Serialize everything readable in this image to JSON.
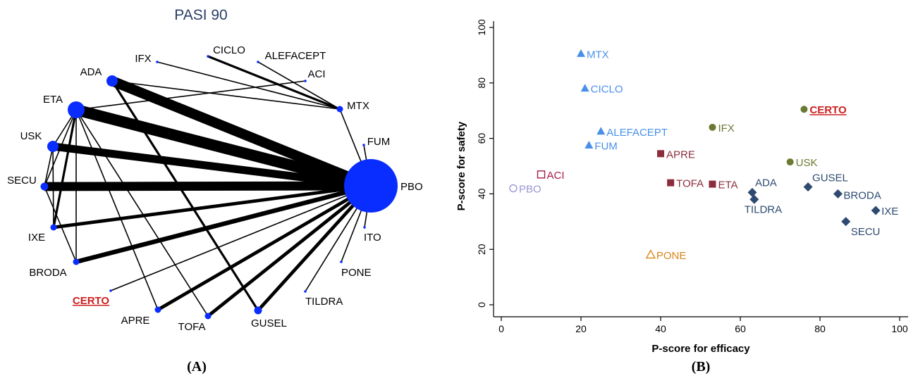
{
  "panel_a": {
    "title": "PASI 90",
    "caption": "(A)",
    "node_color": "#0a2dff",
    "highlight_color": "#cc1f1f",
    "chart_data": {
      "type": "network",
      "title": "PASI 90",
      "nodes": [
        {
          "id": "PBO",
          "label": "PBO",
          "size": 10
        },
        {
          "id": "ITO",
          "label": "ITO",
          "size": 0
        },
        {
          "id": "PONE",
          "label": "PONE",
          "size": 0
        },
        {
          "id": "TILDRA",
          "label": "TILDRA",
          "size": 0
        },
        {
          "id": "GUSEL",
          "label": "GUSEL",
          "size": 2
        },
        {
          "id": "TOFA",
          "label": "TOFA",
          "size": 1
        },
        {
          "id": "APRE",
          "label": "APRE",
          "size": 1
        },
        {
          "id": "CERTO",
          "label": "CERTO",
          "size": 0,
          "highlight": true
        },
        {
          "id": "BRODA",
          "label": "BRODA",
          "size": 1
        },
        {
          "id": "IXE",
          "label": "IXE",
          "size": 1
        },
        {
          "id": "SECU",
          "label": "SECU",
          "size": 2
        },
        {
          "id": "USK",
          "label": "USK",
          "size": 3
        },
        {
          "id": "ETA",
          "label": "ETA",
          "size": 5
        },
        {
          "id": "ADA",
          "label": "ADA",
          "size": 3
        },
        {
          "id": "IFX",
          "label": "IFX",
          "size": 0
        },
        {
          "id": "CICLO",
          "label": "CICLO",
          "size": 0
        },
        {
          "id": "ALEFACEPT",
          "label": "ALEFACEPT",
          "size": 0
        },
        {
          "id": "ACI",
          "label": "ACI",
          "size": 0
        },
        {
          "id": "MTX",
          "label": "MTX",
          "size": 1
        },
        {
          "id": "FUM",
          "label": "FUM",
          "size": 0
        }
      ],
      "edges": [
        {
          "a": "ADA",
          "b": "PBO",
          "w": 9
        },
        {
          "a": "ETA",
          "b": "PBO",
          "w": 10
        },
        {
          "a": "USK",
          "b": "PBO",
          "w": 7
        },
        {
          "a": "SECU",
          "b": "PBO",
          "w": 8
        },
        {
          "a": "IXE",
          "b": "PBO",
          "w": 3
        },
        {
          "a": "BRODA",
          "b": "PBO",
          "w": 4
        },
        {
          "a": "APRE",
          "b": "PBO",
          "w": 3
        },
        {
          "a": "TOFA",
          "b": "PBO",
          "w": 3
        },
        {
          "a": "GUSEL",
          "b": "PBO",
          "w": 3
        },
        {
          "a": "CERTO",
          "b": "PBO",
          "w": 1
        },
        {
          "a": "TILDRA",
          "b": "PBO",
          "w": 1
        },
        {
          "a": "PONE",
          "b": "PBO",
          "w": 1
        },
        {
          "a": "ITO",
          "b": "PBO",
          "w": 1
        },
        {
          "a": "FUM",
          "b": "PBO",
          "w": 1
        },
        {
          "a": "MTX",
          "b": "PBO",
          "w": 1
        },
        {
          "a": "ADA",
          "b": "GUSEL",
          "w": 2
        },
        {
          "a": "ADA",
          "b": "MTX",
          "w": 1
        },
        {
          "a": "CICLO",
          "b": "MTX",
          "w": 2
        },
        {
          "a": "ALEFACEPT",
          "b": "MTX",
          "w": 1
        },
        {
          "a": "IFX",
          "b": "MTX",
          "w": 1
        },
        {
          "a": "ETA",
          "b": "ACI",
          "w": 1
        },
        {
          "a": "ETA",
          "b": "USK",
          "w": 1
        },
        {
          "a": "ETA",
          "b": "SECU",
          "w": 1
        },
        {
          "a": "ETA",
          "b": "BRODA",
          "w": 1
        },
        {
          "a": "ETA",
          "b": "IXE",
          "w": 2
        },
        {
          "a": "ETA",
          "b": "APRE",
          "w": 1
        },
        {
          "a": "ETA",
          "b": "TOFA",
          "w": 1
        },
        {
          "a": "USK",
          "b": "SECU",
          "w": 1
        },
        {
          "a": "USK",
          "b": "IXE",
          "w": 1
        },
        {
          "a": "SECU",
          "b": "BRODA",
          "w": 1
        }
      ]
    }
  },
  "panel_b": {
    "caption": "(B)",
    "chart_data": {
      "type": "scatter",
      "xlabel": "P-score for efficacy",
      "ylabel": "P-score for safety",
      "xlim": [
        0,
        100
      ],
      "ylim": [
        0,
        100
      ],
      "xticks": [
        "0",
        "20",
        "40",
        "60",
        "80",
        "100"
      ],
      "yticks": [
        "0",
        "20",
        "40",
        "60",
        "80",
        "100"
      ],
      "grid": false,
      "groups": [
        {
          "color": "#4a90e8",
          "marker": "triangle",
          "points": [
            {
              "label": "MTX",
              "x": 20,
              "y": 90.5
            },
            {
              "label": "CICLO",
              "x": 21,
              "y": 78
            },
            {
              "label": "ALEFACEPT",
              "x": 25,
              "y": 62.5
            },
            {
              "label": "FUM",
              "x": 22,
              "y": 57.5
            }
          ]
        },
        {
          "color": "#6b7a32",
          "marker": "circle",
          "points": [
            {
              "label": "CERTO",
              "x": 76,
              "y": 70.5,
              "highlight": true
            },
            {
              "label": "IFX",
              "x": 53,
              "y": 64
            },
            {
              "label": "USK",
              "x": 72.5,
              "y": 51.5
            }
          ]
        },
        {
          "color": "#8b2d3c",
          "marker": "square",
          "points": [
            {
              "label": "APRE",
              "x": 40,
              "y": 54.5
            },
            {
              "label": "TOFA",
              "x": 42.5,
              "y": 44
            },
            {
              "label": "ETA",
              "x": 53,
              "y": 43.5
            }
          ]
        },
        {
          "color": "#a8194a",
          "marker": "square-hollow",
          "points": [
            {
              "label": "ACI",
              "x": 10,
              "y": 47
            }
          ]
        },
        {
          "color": "#9a96d4",
          "marker": "circle-hollow",
          "points": [
            {
              "label": "PBO",
              "x": 3,
              "y": 42
            }
          ]
        },
        {
          "color": "#d9861a",
          "marker": "triangle-hollow",
          "points": [
            {
              "label": "PONE",
              "x": 37.5,
              "y": 18
            }
          ]
        },
        {
          "color": "#2e4a70",
          "marker": "diamond",
          "points": [
            {
              "label": "ADA",
              "x": 63,
              "y": 40.5
            },
            {
              "label": "TILDRA",
              "x": 63.5,
              "y": 38
            },
            {
              "label": "GUSEL",
              "x": 77,
              "y": 42.5
            },
            {
              "label": "BRODA",
              "x": 84.5,
              "y": 40
            },
            {
              "label": "IXE",
              "x": 94,
              "y": 34
            },
            {
              "label": "SECU",
              "x": 86.5,
              "y": 30
            }
          ]
        }
      ]
    }
  }
}
